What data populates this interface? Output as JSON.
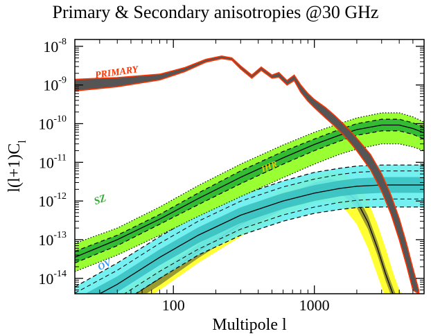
{
  "chart_data": {
    "type": "line",
    "title": "Primary & Secondary anisotropies @30 GHz",
    "xlabel": "Multipole l",
    "ylabel_main": "l(l+1)C",
    "ylabel_sub": "l",
    "xscale": "log",
    "yscale": "log",
    "xlim": [
      20,
      6000
    ],
    "ylim": [
      4e-15,
      1.5e-08
    ],
    "x_ticks": [
      {
        "value": 100,
        "label": "100"
      },
      {
        "value": 1000,
        "label": "1000"
      }
    ],
    "y_ticks": [
      {
        "value": 1e-08,
        "base": "10",
        "exp": "-8"
      },
      {
        "value": 1e-09,
        "base": "10",
        "exp": "-9"
      },
      {
        "value": 1e-10,
        "base": "10",
        "exp": "-10"
      },
      {
        "value": 1e-11,
        "base": "10",
        "exp": "-11"
      },
      {
        "value": 1e-12,
        "base": "10",
        "exp": "-12"
      },
      {
        "value": 1e-13,
        "base": "10",
        "exp": "-13"
      },
      {
        "value": 1e-14,
        "base": "10",
        "exp": "-14"
      }
    ],
    "colors": {
      "primary_fill": "#555555",
      "primary_edge": "#ff3300",
      "sz_outer": "#99ff33",
      "sz_inner": "#33bb33",
      "ov_outer": "#66eeee",
      "ov_inner": "#33bbbb",
      "ihr_outer": "#ffff33",
      "ihr_inner": "#888833",
      "dark": "#226622"
    },
    "annotations": [
      {
        "text": "PRIMARY",
        "color": "#ff3300"
      },
      {
        "text": "SZ",
        "color": "#33aa33"
      },
      {
        "text": "OV",
        "color": "#3399ff"
      },
      {
        "text": "IHR",
        "color": "#e8d000"
      }
    ],
    "series": [
      {
        "name": "PRIMARY",
        "x": [
          20,
          40,
          80,
          120,
          170,
          220,
          260,
          300,
          360,
          420,
          500,
          560,
          640,
          720,
          800,
          900,
          1000,
          1200,
          1400,
          1600,
          1800,
          2000,
          2500,
          3000,
          3500,
          4000,
          4500,
          5000,
          5500
        ],
        "upper": [
          1.4e-09,
          1.55e-09,
          1.9e-09,
          2.8e-09,
          4.6e-09,
          5.6e-09,
          5e-09,
          3.1e-09,
          1.8e-09,
          2.9e-09,
          1.8e-09,
          2.1e-09,
          1.3e-09,
          1.8e-09,
          1e-09,
          6e-10,
          4.2e-10,
          2.6e-10,
          1.6e-10,
          1e-10,
          6.5e-11,
          4.2e-11,
          1.6e-11,
          5e-12,
          1.4e-12,
          3.5e-13,
          8e-14,
          1.8e-14,
          5e-15
        ],
        "lower": [
          7e-10,
          9e-10,
          1.35e-09,
          2.2e-09,
          3.9e-09,
          4.8e-09,
          4.4e-09,
          2.6e-09,
          1.5e-09,
          2.4e-09,
          1.5e-09,
          1.6e-09,
          1e-09,
          1.3e-09,
          6.5e-10,
          3.8e-10,
          2.6e-10,
          1.4e-10,
          8.5e-11,
          5.2e-11,
          3.2e-11,
          2e-11,
          6.5e-12,
          1.8e-12,
          4.5e-13,
          1e-13,
          2.2e-14,
          5e-15,
          4e-15
        ]
      },
      {
        "name": "SZ",
        "x": [
          20,
          40,
          80,
          150,
          300,
          600,
          1000,
          1500,
          2000,
          3000,
          4000,
          5000,
          6000
        ],
        "outer_upper": [
          8e-14,
          2e-13,
          7e-13,
          2.5e-12,
          9e-12,
          2.8e-11,
          6e-11,
          1e-10,
          1.4e-10,
          1.9e-10,
          1.9e-10,
          1.5e-10,
          1.1e-10
        ],
        "outer_lower": [
          1.5e-14,
          4e-14,
          1.3e-13,
          4e-13,
          1.3e-12,
          4e-12,
          9e-12,
          1.6e-11,
          2.2e-11,
          3e-11,
          3e-11,
          2.5e-11,
          2e-11
        ],
        "inner_upper": [
          5e-14,
          1.3e-13,
          4.5e-13,
          1.6e-12,
          6e-12,
          1.9e-11,
          4e-11,
          7e-11,
          1e-10,
          1.3e-10,
          1.3e-10,
          1.05e-10,
          8e-11
        ],
        "inner_lower": [
          2.5e-14,
          7e-14,
          2.5e-13,
          8e-13,
          2.8e-12,
          9e-12,
          2e-11,
          3.5e-11,
          5e-11,
          6.5e-11,
          6.5e-11,
          5.3e-11,
          4e-11
        ],
        "center": [
          3.5e-14,
          1e-13,
          3.4e-13,
          1.15e-12,
          4.1e-12,
          1.3e-11,
          2.9e-11,
          5e-11,
          7e-11,
          9.2e-11,
          9.2e-11,
          7.5e-11,
          5.8e-11
        ]
      },
      {
        "name": "OV",
        "x": [
          20,
          40,
          80,
          150,
          300,
          600,
          1000,
          1500,
          2000,
          3000,
          4000,
          6000
        ],
        "outer_upper": [
          6e-15,
          2.5e-14,
          1.2e-13,
          4.5e-13,
          1.4e-12,
          3.3e-12,
          5.5e-12,
          7e-12,
          8e-12,
          8.5e-12,
          8.5e-12,
          8.5e-12
        ],
        "outer_lower": [
          5e-16,
          2e-15,
          1e-14,
          4e-14,
          1.3e-13,
          3e-13,
          4.8e-13,
          6e-13,
          6.8e-13,
          7e-13,
          7e-13,
          7e-13
        ],
        "center": [
          1.8e-15,
          7e-15,
          3.5e-14,
          1.3e-13,
          4.3e-13,
          1e-12,
          1.6e-12,
          2.1e-12,
          2.4e-12,
          2.6e-12,
          2.6e-12,
          2.6e-12
        ]
      },
      {
        "name": "IHR",
        "x": [
          20,
          40,
          80,
          150,
          300,
          600,
          1000,
          1300,
          1600,
          2000,
          2400,
          2800,
          3200,
          3600,
          4000,
          4500
        ],
        "outer_upper": [
          1e-15,
          4e-15,
          2e-14,
          1e-13,
          5e-13,
          2e-12,
          4.5e-12,
          5.5e-12,
          5e-12,
          3e-12,
          1e-12,
          2.5e-13,
          6e-14,
          1.5e-14,
          5e-15,
          3e-15
        ],
        "outer_lower": [
          3e-16,
          1e-15,
          5e-15,
          2.5e-14,
          1.2e-13,
          4.5e-13,
          9e-13,
          1e-12,
          7e-13,
          2.5e-13,
          6e-14,
          1.2e-14,
          3e-15,
          1e-15,
          5e-16,
          3e-16
        ],
        "center": [
          5e-16,
          2e-15,
          1e-14,
          5e-14,
          2.5e-13,
          9e-13,
          2e-12,
          2.5e-12,
          2.1e-12,
          1e-12,
          2.8e-13,
          6e-14,
          1.3e-14,
          4e-15,
          1.5e-15,
          1e-15
        ]
      }
    ]
  }
}
